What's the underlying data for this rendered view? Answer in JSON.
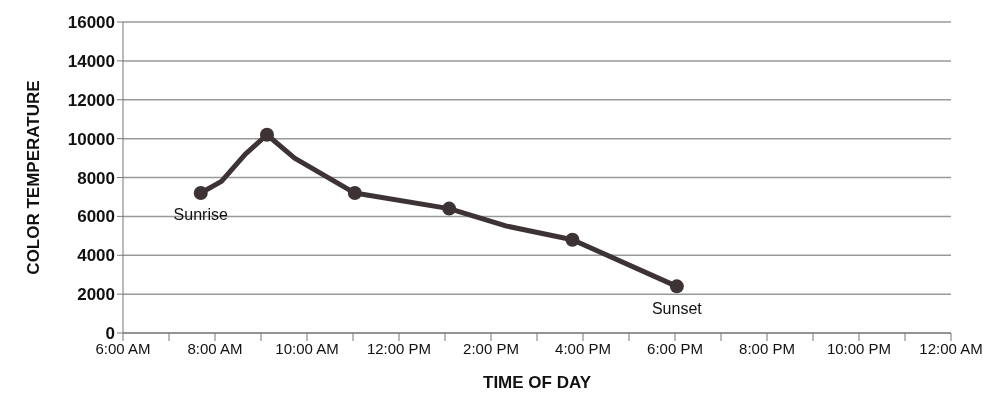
{
  "chart_data": {
    "type": "line",
    "xlabel": "TIME OF DAY",
    "ylabel": "COLOR TEMPERATURE",
    "series": [
      {
        "color": "#3d3335",
        "marker": "none",
        "x": [
          7.69,
          8.14,
          8.66,
          9.13,
          9.73,
          11.04,
          13.09,
          14.34,
          15.77,
          18.04
        ],
        "values": [
          7200,
          7800,
          9200,
          10200,
          9000,
          7200,
          6400,
          5500,
          4800,
          2400
        ]
      },
      {
        "type": "scatter",
        "color": "#3d3335",
        "marker": "circle",
        "x": [
          7.69,
          9.13,
          11.04,
          13.09,
          15.77,
          18.04
        ],
        "values": [
          7200,
          10200,
          7200,
          6400,
          4800,
          2400
        ]
      }
    ],
    "xlim": [
      6,
      24
    ],
    "xticks": [
      {
        "value": 6,
        "label": "6:00 AM"
      },
      {
        "value": 7,
        "label": null
      },
      {
        "value": 8,
        "label": "8:00 AM"
      },
      {
        "value": 9,
        "label": null
      },
      {
        "value": 10,
        "label": "10:00 AM"
      },
      {
        "value": 11,
        "label": null
      },
      {
        "value": 12,
        "label": "12:00 PM"
      },
      {
        "value": 13,
        "label": null
      },
      {
        "value": 14,
        "label": "2:00 PM"
      },
      {
        "value": 15,
        "label": null
      },
      {
        "value": 16,
        "label": "4:00 PM"
      },
      {
        "value": 17,
        "label": null
      },
      {
        "value": 18,
        "label": "6:00 PM"
      },
      {
        "value": 19,
        "label": null
      },
      {
        "value": 20,
        "label": "8:00 PM"
      },
      {
        "value": 21,
        "label": null
      },
      {
        "value": 22,
        "label": "10:00 PM"
      },
      {
        "value": 23,
        "label": null
      },
      {
        "value": 24,
        "label": "12:00 AM"
      }
    ],
    "ylim": [
      0,
      16000
    ],
    "yticks": [
      0,
      2000,
      4000,
      6000,
      8000,
      10000,
      12000,
      14000,
      16000
    ],
    "grid": "y",
    "legend": false,
    "line_style": "solid",
    "annotations": [
      {
        "text": "Sunrise",
        "x": 7.69,
        "y": 7200
      },
      {
        "text": "Sunset",
        "x": 18.04,
        "y": 2400
      }
    ]
  }
}
